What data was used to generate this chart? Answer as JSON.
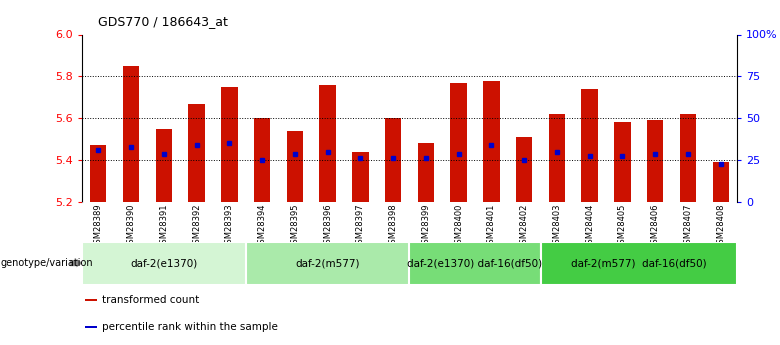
{
  "title": "GDS770 / 186643_at",
  "samples": [
    "GSM28389",
    "GSM28390",
    "GSM28391",
    "GSM28392",
    "GSM28393",
    "GSM28394",
    "GSM28395",
    "GSM28396",
    "GSM28397",
    "GSM28398",
    "GSM28399",
    "GSM28400",
    "GSM28401",
    "GSM28402",
    "GSM28403",
    "GSM28404",
    "GSM28405",
    "GSM28406",
    "GSM28407",
    "GSM28408"
  ],
  "bar_heights": [
    5.47,
    5.85,
    5.55,
    5.67,
    5.75,
    5.6,
    5.54,
    5.76,
    5.44,
    5.6,
    5.48,
    5.77,
    5.78,
    5.51,
    5.62,
    5.74,
    5.58,
    5.59,
    5.62,
    5.39
  ],
  "blue_dot_y": [
    5.45,
    5.46,
    5.43,
    5.47,
    5.48,
    5.4,
    5.43,
    5.44,
    5.41,
    5.41,
    5.41,
    5.43,
    5.47,
    5.4,
    5.44,
    5.42,
    5.42,
    5.43,
    5.43,
    5.38
  ],
  "ymin": 5.2,
  "ymax": 6.0,
  "yticks": [
    5.2,
    5.4,
    5.6,
    5.8,
    6.0
  ],
  "right_yticks": [
    0,
    25,
    50,
    75,
    100
  ],
  "right_ytick_labels": [
    "0",
    "25",
    "50",
    "75",
    "100%"
  ],
  "dotted_lines": [
    5.4,
    5.6,
    5.8
  ],
  "groups": [
    {
      "label": "daf-2(e1370)",
      "start": 0,
      "end": 5,
      "color": "#d4f5d4"
    },
    {
      "label": "daf-2(m577)",
      "start": 5,
      "end": 10,
      "color": "#aaeaaa"
    },
    {
      "label": "daf-2(e1370) daf-16(df50)",
      "start": 10,
      "end": 14,
      "color": "#77dd77"
    },
    {
      "label": "daf-2(m577)  daf-16(df50)",
      "start": 14,
      "end": 20,
      "color": "#44cc44"
    }
  ],
  "bar_color": "#cc1100",
  "blue_dot_color": "#0000cc",
  "bar_width": 0.5,
  "genotype_label": "genotype/variation",
  "legend_items": [
    {
      "color": "#cc1100",
      "label": "transformed count"
    },
    {
      "color": "#0000cc",
      "label": "percentile rank within the sample"
    }
  ]
}
